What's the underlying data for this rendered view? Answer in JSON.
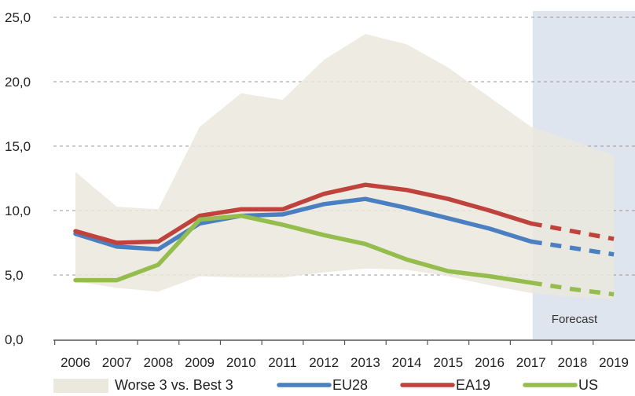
{
  "chart_data": {
    "type": "line",
    "x": [
      "2006",
      "2007",
      "2008",
      "2009",
      "2010",
      "2011",
      "2012",
      "2013",
      "2014",
      "2015",
      "2016",
      "2017",
      "2018",
      "2019"
    ],
    "ylim": [
      0,
      25
    ],
    "yticks": [
      0,
      5,
      10,
      15,
      20,
      25
    ],
    "ytick_labels": [
      "0,0",
      "5,0",
      "10,0",
      "15,0",
      "20,0",
      "25,0"
    ],
    "grid": "horizontal dashed",
    "legend_placement": "bottom",
    "forecast_label": "Forecast",
    "forecast_from": "2017",
    "band": {
      "name": "Worse 3 vs. Best 3",
      "color": "#ebe9dd",
      "upper": [
        13.0,
        10.3,
        10.1,
        16.5,
        19.1,
        18.6,
        21.7,
        23.7,
        22.9,
        21.1,
        18.8,
        16.5,
        15.4,
        14.3
      ],
      "lower": [
        4.5,
        4.0,
        3.7,
        4.9,
        4.8,
        4.8,
        5.2,
        5.5,
        5.4,
        4.9,
        4.2,
        3.6,
        3.3,
        3.1
      ]
    },
    "series": [
      {
        "name": "EU28",
        "color": "#4a80c1",
        "values": [
          8.2,
          7.2,
          7.0,
          9.0,
          9.6,
          9.7,
          10.5,
          10.9,
          10.2,
          9.4,
          8.6,
          7.6,
          7.1,
          6.6
        ]
      },
      {
        "name": "EA19",
        "color": "#c0423c",
        "values": [
          8.4,
          7.5,
          7.6,
          9.6,
          10.1,
          10.1,
          11.3,
          12.0,
          11.6,
          10.9,
          10.0,
          9.0,
          8.4,
          7.8
        ]
      },
      {
        "name": "US",
        "color": "#94bd4d",
        "values": [
          4.6,
          4.6,
          5.8,
          9.3,
          9.6,
          8.9,
          8.1,
          7.4,
          6.2,
          5.3,
          4.9,
          4.4,
          3.9,
          3.5
        ]
      }
    ]
  }
}
